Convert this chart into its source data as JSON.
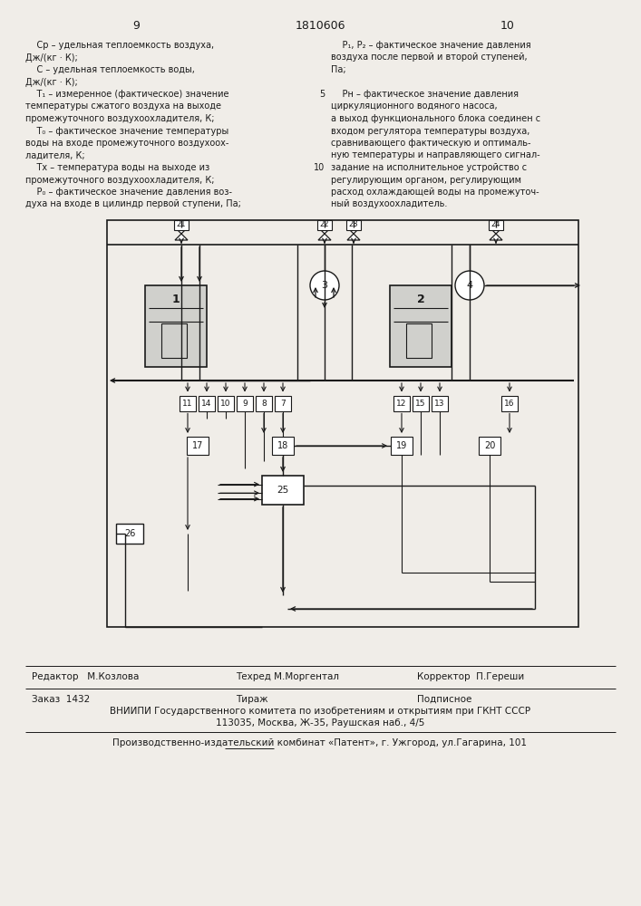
{
  "bg_color": "#f0ede8",
  "text_color": "#1a1a1a",
  "footer_line1_left": "Редактор   М.Козлова",
  "footer_line1_mid": "Техред М.Моргентал",
  "footer_line1_right": "Корректор  П.Гереши",
  "footer_line2_left": "Заказ  1432",
  "footer_line2_mid": "Тираж",
  "footer_line2_right": "Подписное",
  "footer_line3": "ВНИИПИ Государственного комитета по изобретениям и открытиям при ГКНТ СССР",
  "footer_line4": "113035, Москва, Ж-35, Раушская наб., 4/5",
  "footer_line5": "Производственно-издательский комбинат «Патент», г. Ужгород, ул.Гагарина, 101"
}
